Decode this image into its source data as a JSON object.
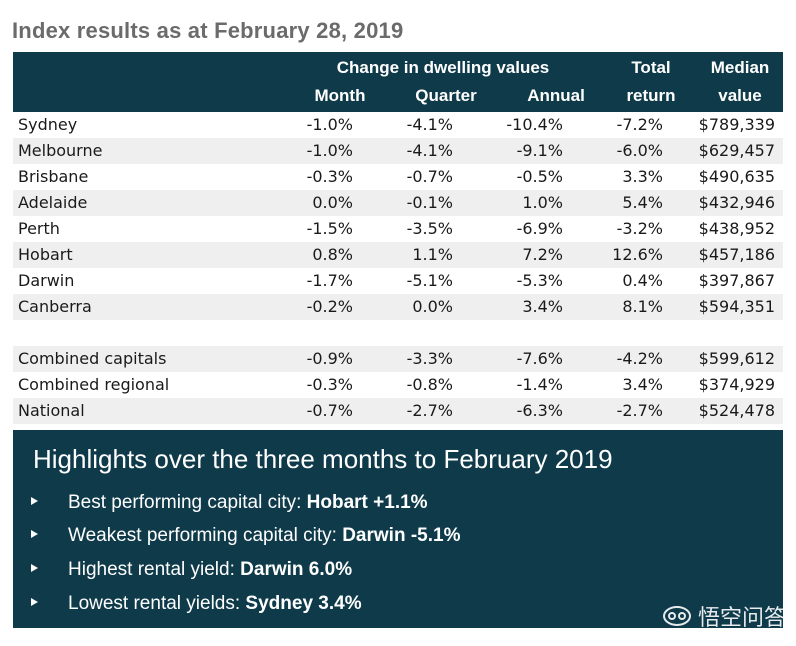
{
  "title": "Index results as at February 28, 2019",
  "header": {
    "group": "Change in dwelling values",
    "month": "Month",
    "quarter": "Quarter",
    "annual": "Annual",
    "total_1": "Total",
    "total_2": "return",
    "median_1": "Median",
    "median_2": "value"
  },
  "rows": [
    {
      "name": "Sydney",
      "month": "-1.0%",
      "quarter": "-4.1%",
      "annual": "-10.4%",
      "ret": "-7.2%",
      "med": "$789,339"
    },
    {
      "name": "Melbourne",
      "month": "-1.0%",
      "quarter": "-4.1%",
      "annual": "-9.1%",
      "ret": "-6.0%",
      "med": "$629,457"
    },
    {
      "name": "Brisbane",
      "month": "-0.3%",
      "quarter": "-0.7%",
      "annual": "-0.5%",
      "ret": "3.3%",
      "med": "$490,635"
    },
    {
      "name": "Adelaide",
      "month": "0.0%",
      "quarter": "-0.1%",
      "annual": "1.0%",
      "ret": "5.4%",
      "med": "$432,946"
    },
    {
      "name": "Perth",
      "month": "-1.5%",
      "quarter": "-3.5%",
      "annual": "-6.9%",
      "ret": "-3.2%",
      "med": "$438,952"
    },
    {
      "name": "Hobart",
      "month": "0.8%",
      "quarter": "1.1%",
      "annual": "7.2%",
      "ret": "12.6%",
      "med": "$457,186"
    },
    {
      "name": "Darwin",
      "month": "-1.7%",
      "quarter": "-5.1%",
      "annual": "-5.3%",
      "ret": "0.4%",
      "med": "$397,867"
    },
    {
      "name": "Canberra",
      "month": "-0.2%",
      "quarter": "0.0%",
      "annual": "3.4%",
      "ret": "8.1%",
      "med": "$594,351"
    },
    {
      "name": "Combined capitals",
      "month": "-0.9%",
      "quarter": "-3.3%",
      "annual": "-7.6%",
      "ret": "-4.2%",
      "med": "$599,612"
    },
    {
      "name": "Combined regional",
      "month": "-0.3%",
      "quarter": "-0.8%",
      "annual": "-1.4%",
      "ret": "3.4%",
      "med": "$374,929"
    },
    {
      "name": "National",
      "month": "-0.7%",
      "quarter": "-2.7%",
      "annual": "-6.3%",
      "ret": "-2.7%",
      "med": "$524,478"
    }
  ],
  "highlights": {
    "title": "Highlights over the three months to February 2019",
    "items": [
      {
        "text": "Best performing capital city: ",
        "bold": "Hobart +1.1%"
      },
      {
        "text": "Weakest performing capital city: ",
        "bold": "Darwin -5.1%"
      },
      {
        "text": "Highest rental yield: ",
        "bold": "Darwin 6.0%"
      },
      {
        "text": "Lowest rental yields: ",
        "bold": "Sydney 3.4%"
      }
    ]
  },
  "watermark": {
    "text": "悟空问答",
    "icon": "wukong-logo-icon"
  }
}
